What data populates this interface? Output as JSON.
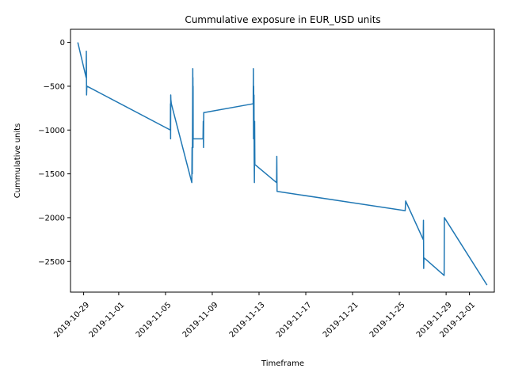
{
  "chart_data": {
    "type": "line",
    "title": "Cummulative exposure in EUR_USD units",
    "xlabel": "Timeframe",
    "ylabel": "Cummulative units",
    "x_ticks": [
      "2019-10-29",
      "2019-11-01",
      "2019-11-05",
      "2019-11-09",
      "2019-11-13",
      "2019-11-17",
      "2019-11-21",
      "2019-11-25",
      "2019-11-29",
      "2019-12-01"
    ],
    "y_ticks": [
      0,
      -500,
      -1000,
      -1500,
      -2000,
      -2500
    ],
    "xlim": [
      "2019-10-27T21:00",
      "2019-12-03T03:00"
    ],
    "ylim": [
      -2850,
      150
    ],
    "grid": false,
    "color": "#1f77b4",
    "series": [
      {
        "x": [
          "2019-10-28T12:00",
          "2019-10-29T05:00",
          "2019-10-29T05:30",
          "2019-10-29T06:00",
          "2019-10-29T06:30",
          "2019-10-29T07:00",
          "2019-11-05T10:00",
          "2019-11-05T10:15",
          "2019-11-05T10:30",
          "2019-11-05T10:45",
          "2019-11-05T11:00",
          "2019-11-05T12:00",
          "2019-11-07T06:00",
          "2019-11-07T06:30",
          "2019-11-07T07:00",
          "2019-11-07T08:00",
          "2019-11-07T08:10",
          "2019-11-07T08:20",
          "2019-11-07T08:30",
          "2019-11-07T08:40",
          "2019-11-07T08:50",
          "2019-11-07T09:00",
          "2019-11-07T09:10",
          "2019-11-07T09:20",
          "2019-11-07T09:30",
          "2019-11-07T10:00",
          "2019-11-08T05:00",
          "2019-11-08T05:30",
          "2019-11-08T06:00",
          "2019-11-08T06:30",
          "2019-11-08T07:00",
          "2019-11-08T08:00",
          "2019-11-12T12:00",
          "2019-11-12T12:20",
          "2019-11-12T12:40",
          "2019-11-12T13:00",
          "2019-11-12T13:20",
          "2019-11-12T13:40",
          "2019-11-12T14:00",
          "2019-11-12T14:30",
          "2019-11-12T15:00",
          "2019-11-12T15:30",
          "2019-11-12T16:00",
          "2019-11-12T16:30",
          "2019-11-12T17:00",
          "2019-11-14T12:00",
          "2019-11-14T12:30",
          "2019-11-14T13:00",
          "2019-11-25T12:00",
          "2019-11-25T13:00",
          "2019-11-27T01:00",
          "2019-11-27T01:30",
          "2019-11-27T02:00",
          "2019-11-27T02:30",
          "2019-11-27T03:00",
          "2019-11-28T20:00",
          "2019-11-28T20:30",
          "2019-12-02T12:00"
        ],
        "y": [
          0,
          -400,
          -100,
          -600,
          -500,
          -500,
          -1000,
          -700,
          -1100,
          -600,
          -650,
          -700,
          -1600,
          -1200,
          -1500,
          -300,
          -700,
          -400,
          -1200,
          -500,
          -1100,
          -1100,
          -1100,
          -1100,
          -1100,
          -1100,
          -1100,
          -900,
          -1200,
          -800,
          -800,
          -800,
          -700,
          -300,
          -1100,
          -500,
          -900,
          -600,
          -1300,
          -1600,
          -900,
          -1400,
          -1400,
          -1400,
          -1400,
          -1600,
          -1300,
          -1700,
          -1920,
          -1810,
          -2250,
          -2030,
          -2580,
          -2460,
          -2460,
          -2660,
          -2000,
          -2770
        ]
      }
    ]
  }
}
